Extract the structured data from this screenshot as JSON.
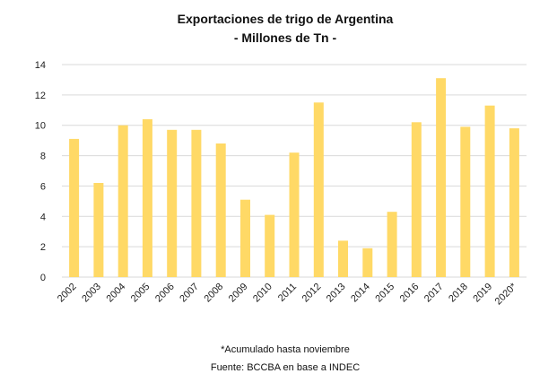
{
  "chart_data": {
    "type": "bar",
    "title": "Exportaciones de trigo de Argentina",
    "subtitle": "-  Millones de Tn -",
    "xlabel": "",
    "ylabel": "",
    "categories": [
      "2002",
      "2003",
      "2004",
      "2005",
      "2006",
      "2007",
      "2008",
      "2009",
      "2010",
      "2011",
      "2012",
      "2013",
      "2014",
      "2015",
      "2016",
      "2017",
      "2018",
      "2019",
      "2020*"
    ],
    "values": [
      9.1,
      6.2,
      10.0,
      10.4,
      9.7,
      9.7,
      8.8,
      5.1,
      4.1,
      8.2,
      11.5,
      2.4,
      1.9,
      4.3,
      10.2,
      13.1,
      9.9,
      11.3,
      9.8
    ],
    "ylim": [
      0,
      14
    ],
    "yticks": [
      0,
      2,
      4,
      6,
      8,
      10,
      12,
      14
    ],
    "grid": true,
    "legend": "none",
    "bar_color": "#ffd966",
    "grid_color": "#d9d9d9"
  },
  "footnote": "*Acumulado hasta noviembre",
  "source": "Fuente: BCCBA en base a INDEC"
}
